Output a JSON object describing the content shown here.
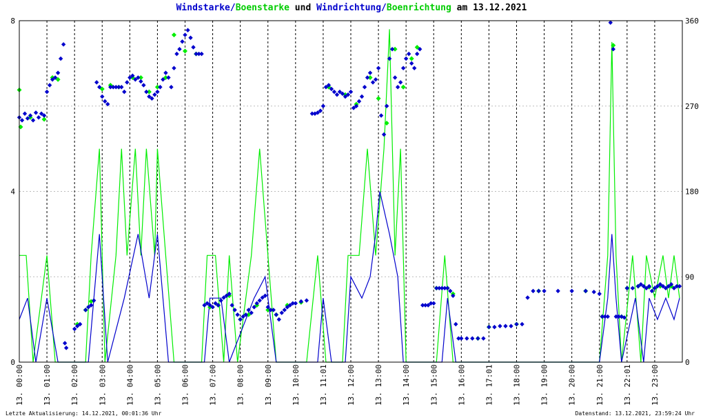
{
  "title": {
    "part1": "Windstarke/",
    "part2": "Boenstarke",
    "part3": " und ",
    "part4": "Windrichtung/",
    "part5": "Boenrichtung",
    "part6": " am 13.12.2021"
  },
  "footer": {
    "left": "Letzte Aktualisierung: 14.12.2021, 00:01:36 Uhr",
    "right": "Datenstand: 13.12.2021, 23:59:24 Uhr"
  },
  "colors": {
    "wind": "#0000cc",
    "gust": "#00ee00",
    "grid": "#000000",
    "grid_h": "#bbbbbb"
  },
  "chart_data": {
    "type": "line",
    "y_left": {
      "range": [
        0,
        8
      ],
      "ticks": [
        "0",
        "4",
        "8"
      ]
    },
    "y_right": {
      "range": [
        0,
        360
      ],
      "ticks": [
        "0",
        "90",
        "180",
        "270",
        "360"
      ]
    },
    "x_range": [
      0,
      24
    ],
    "x_tick_labels": [
      "13. 00:00",
      "13. 01:00",
      "13. 02:00",
      "13. 03:00",
      "13. 04:00",
      "13. 05:00",
      "13. 06:00",
      "13. 07:00",
      "13. 08:00",
      "13. 09:00",
      "13. 10:00",
      "13. 11:01",
      "13. 12:00",
      "13. 13:00",
      "13. 14:00",
      "13. 15:00",
      "13. 16:00",
      "13. 17:01",
      "13. 18:00",
      "13. 19:00",
      "13. 20:00",
      "13. 21:00",
      "13. 22:01",
      "13. 23:00"
    ],
    "grid": true,
    "gust_speed": [
      [
        0.0,
        2.5
      ],
      [
        0.25,
        2.5
      ],
      [
        0.5,
        0
      ],
      [
        1.0,
        2.5
      ],
      [
        1.3,
        0
      ],
      [
        1.8,
        0
      ],
      [
        2.4,
        0
      ],
      [
        2.6,
        2.5
      ],
      [
        2.9,
        5
      ],
      [
        3.1,
        0
      ],
      [
        3.5,
        2.5
      ],
      [
        3.7,
        5
      ],
      [
        3.9,
        2.5
      ],
      [
        4.2,
        5
      ],
      [
        4.4,
        2.5
      ],
      [
        4.6,
        5
      ],
      [
        4.9,
        2.5
      ],
      [
        5.0,
        5
      ],
      [
        5.3,
        2.5
      ],
      [
        5.6,
        0
      ],
      [
        6.0,
        0
      ],
      [
        6.6,
        0
      ],
      [
        6.8,
        2.5
      ],
      [
        7.1,
        2.5
      ],
      [
        7.4,
        0
      ],
      [
        7.6,
        2.5
      ],
      [
        7.9,
        0
      ],
      [
        8.4,
        2.5
      ],
      [
        8.7,
        5
      ],
      [
        9.0,
        2.5
      ],
      [
        9.3,
        0
      ],
      [
        9.8,
        0
      ],
      [
        10.4,
        0
      ],
      [
        10.8,
        2.5
      ],
      [
        11.1,
        0
      ],
      [
        11.7,
        0
      ],
      [
        11.9,
        2.5
      ],
      [
        12.3,
        2.5
      ],
      [
        12.6,
        5
      ],
      [
        12.9,
        2.5
      ],
      [
        13.2,
        5
      ],
      [
        13.4,
        7.8
      ],
      [
        13.6,
        2.5
      ],
      [
        13.8,
        5
      ],
      [
        14.0,
        0
      ],
      [
        14.5,
        0
      ],
      [
        15.1,
        0
      ],
      [
        15.4,
        2.5
      ],
      [
        15.7,
        0
      ],
      [
        17.0,
        0
      ],
      [
        18.5,
        0
      ],
      [
        20.5,
        0
      ],
      [
        21.0,
        0
      ],
      [
        21.3,
        2.5
      ],
      [
        21.45,
        7.5
      ],
      [
        21.6,
        2.5
      ],
      [
        21.8,
        0
      ],
      [
        22.2,
        2.5
      ],
      [
        22.5,
        0
      ],
      [
        22.7,
        2.5
      ],
      [
        23.0,
        1.5
      ],
      [
        23.3,
        2.5
      ],
      [
        23.5,
        1.5
      ],
      [
        23.7,
        2.5
      ],
      [
        23.9,
        1.5
      ]
    ],
    "wind_speed": [
      [
        0.0,
        1.0
      ],
      [
        0.3,
        1.5
      ],
      [
        0.6,
        0
      ],
      [
        1.0,
        1.5
      ],
      [
        1.4,
        0
      ],
      [
        2.5,
        0
      ],
      [
        2.9,
        3
      ],
      [
        3.2,
        0
      ],
      [
        3.8,
        1.5
      ],
      [
        4.3,
        3
      ],
      [
        4.7,
        1.5
      ],
      [
        5.0,
        3
      ],
      [
        5.4,
        0
      ],
      [
        6.7,
        0
      ],
      [
        6.9,
        1.5
      ],
      [
        7.3,
        1.5
      ],
      [
        7.6,
        0
      ],
      [
        8.5,
        1.5
      ],
      [
        8.9,
        2
      ],
      [
        9.3,
        0
      ],
      [
        10.8,
        0
      ],
      [
        11.0,
        1.5
      ],
      [
        11.3,
        0
      ],
      [
        11.8,
        0
      ],
      [
        12.0,
        2
      ],
      [
        12.4,
        1.5
      ],
      [
        12.7,
        2
      ],
      [
        12.9,
        3
      ],
      [
        13.05,
        4
      ],
      [
        13.4,
        3
      ],
      [
        13.7,
        2
      ],
      [
        13.9,
        0
      ],
      [
        15.3,
        0
      ],
      [
        15.5,
        1.5
      ],
      [
        15.8,
        0
      ],
      [
        21.0,
        0
      ],
      [
        21.3,
        1.5
      ],
      [
        21.45,
        3
      ],
      [
        21.6,
        1.5
      ],
      [
        21.8,
        0
      ],
      [
        22.3,
        1.5
      ],
      [
        22.6,
        0
      ],
      [
        22.8,
        1.5
      ],
      [
        23.1,
        1
      ],
      [
        23.4,
        1.5
      ],
      [
        23.7,
        1
      ],
      [
        23.9,
        1.5
      ]
    ],
    "wind_direction_deg": [
      [
        0.0,
        258
      ],
      [
        0.1,
        255
      ],
      [
        0.2,
        262
      ],
      [
        0.3,
        257
      ],
      [
        0.4,
        260
      ],
      [
        0.5,
        255
      ],
      [
        0.6,
        263
      ],
      [
        0.7,
        258
      ],
      [
        0.8,
        262
      ],
      [
        0.9,
        260
      ],
      [
        1.0,
        285
      ],
      [
        1.1,
        292
      ],
      [
        1.2,
        298
      ],
      [
        1.3,
        300
      ],
      [
        1.4,
        305
      ],
      [
        1.5,
        320
      ],
      [
        1.6,
        335
      ],
      [
        1.65,
        20
      ],
      [
        1.7,
        15
      ],
      [
        2.0,
        35
      ],
      [
        2.1,
        38
      ],
      [
        2.2,
        40
      ],
      [
        2.4,
        55
      ],
      [
        2.5,
        58
      ],
      [
        2.6,
        60
      ],
      [
        2.7,
        65
      ],
      [
        2.8,
        295
      ],
      [
        2.9,
        290
      ],
      [
        3.0,
        280
      ],
      [
        3.1,
        275
      ],
      [
        3.2,
        272
      ],
      [
        3.3,
        290
      ],
      [
        3.4,
        290
      ],
      [
        3.5,
        290
      ],
      [
        3.6,
        290
      ],
      [
        3.7,
        290
      ],
      [
        3.8,
        285
      ],
      [
        3.9,
        295
      ],
      [
        4.0,
        300
      ],
      [
        4.1,
        302
      ],
      [
        4.2,
        298
      ],
      [
        4.3,
        300
      ],
      [
        4.4,
        296
      ],
      [
        4.5,
        292
      ],
      [
        4.6,
        285
      ],
      [
        4.7,
        280
      ],
      [
        4.8,
        278
      ],
      [
        4.9,
        282
      ],
      [
        5.0,
        285
      ],
      [
        5.1,
        290
      ],
      [
        5.2,
        298
      ],
      [
        5.3,
        305
      ],
      [
        5.4,
        300
      ],
      [
        5.5,
        290
      ],
      [
        5.6,
        310
      ],
      [
        5.7,
        325
      ],
      [
        5.8,
        330
      ],
      [
        5.9,
        338
      ],
      [
        6.0,
        345
      ],
      [
        6.1,
        350
      ],
      [
        6.2,
        342
      ],
      [
        6.3,
        332
      ],
      [
        6.4,
        325
      ],
      [
        6.5,
        325
      ],
      [
        6.6,
        325
      ],
      [
        6.7,
        60
      ],
      [
        6.8,
        62
      ],
      [
        6.9,
        60
      ],
      [
        7.0,
        58
      ],
      [
        7.1,
        62
      ],
      [
        7.2,
        60
      ],
      [
        7.3,
        65
      ],
      [
        7.4,
        68
      ],
      [
        7.5,
        70
      ],
      [
        7.6,
        72
      ],
      [
        7.7,
        60
      ],
      [
        7.8,
        55
      ],
      [
        7.9,
        50
      ],
      [
        8.0,
        45
      ],
      [
        8.1,
        48
      ],
      [
        8.2,
        50
      ],
      [
        8.3,
        55
      ],
      [
        8.4,
        52
      ],
      [
        8.5,
        58
      ],
      [
        8.6,
        62
      ],
      [
        8.7,
        65
      ],
      [
        8.8,
        68
      ],
      [
        8.9,
        70
      ],
      [
        9.0,
        58
      ],
      [
        9.1,
        55
      ],
      [
        9.2,
        55
      ],
      [
        9.3,
        50
      ],
      [
        9.4,
        45
      ],
      [
        9.5,
        52
      ],
      [
        9.6,
        55
      ],
      [
        9.7,
        58
      ],
      [
        9.8,
        60
      ],
      [
        9.9,
        62
      ],
      [
        10.0,
        62
      ],
      [
        10.2,
        64
      ],
      [
        10.4,
        65
      ],
      [
        10.6,
        262
      ],
      [
        10.7,
        262
      ],
      [
        10.8,
        263
      ],
      [
        10.9,
        265
      ],
      [
        11.0,
        270
      ],
      [
        11.1,
        290
      ],
      [
        11.2,
        292
      ],
      [
        11.3,
        288
      ],
      [
        11.4,
        285
      ],
      [
        11.5,
        282
      ],
      [
        11.6,
        285
      ],
      [
        11.7,
        283
      ],
      [
        11.8,
        280
      ],
      [
        11.9,
        282
      ],
      [
        12.0,
        285
      ],
      [
        12.1,
        268
      ],
      [
        12.2,
        270
      ],
      [
        12.3,
        275
      ],
      [
        12.4,
        280
      ],
      [
        12.5,
        290
      ],
      [
        12.6,
        300
      ],
      [
        12.7,
        305
      ],
      [
        12.8,
        295
      ],
      [
        12.9,
        298
      ],
      [
        13.0,
        310
      ],
      [
        13.1,
        260
      ],
      [
        13.2,
        240
      ],
      [
        13.3,
        270
      ],
      [
        13.4,
        320
      ],
      [
        13.5,
        330
      ],
      [
        13.6,
        300
      ],
      [
        13.7,
        290
      ],
      [
        13.8,
        295
      ],
      [
        13.9,
        310
      ],
      [
        14.0,
        320
      ],
      [
        14.1,
        325
      ],
      [
        14.2,
        315
      ],
      [
        14.3,
        310
      ],
      [
        14.4,
        325
      ],
      [
        14.5,
        330
      ],
      [
        14.6,
        60
      ],
      [
        14.7,
        60
      ],
      [
        14.8,
        60
      ],
      [
        14.9,
        62
      ],
      [
        15.0,
        62
      ],
      [
        15.1,
        78
      ],
      [
        15.2,
        78
      ],
      [
        15.3,
        78
      ],
      [
        15.4,
        78
      ],
      [
        15.5,
        78
      ],
      [
        15.6,
        75
      ],
      [
        15.7,
        70
      ],
      [
        15.8,
        40
      ],
      [
        15.9,
        25
      ],
      [
        16.0,
        25
      ],
      [
        16.2,
        25
      ],
      [
        16.4,
        25
      ],
      [
        16.6,
        25
      ],
      [
        16.8,
        25
      ],
      [
        17.0,
        37
      ],
      [
        17.2,
        37
      ],
      [
        17.4,
        38
      ],
      [
        17.6,
        38
      ],
      [
        17.8,
        38
      ],
      [
        18.0,
        40
      ],
      [
        18.2,
        40
      ],
      [
        18.4,
        68
      ],
      [
        18.6,
        75
      ],
      [
        18.8,
        75
      ],
      [
        19.0,
        75
      ],
      [
        19.5,
        75
      ],
      [
        20.0,
        75
      ],
      [
        20.5,
        75
      ],
      [
        20.8,
        74
      ],
      [
        21.0,
        72
      ],
      [
        21.1,
        48
      ],
      [
        21.2,
        48
      ],
      [
        21.3,
        48
      ],
      [
        21.4,
        358
      ],
      [
        21.5,
        330
      ],
      [
        21.6,
        48
      ],
      [
        21.7,
        48
      ],
      [
        21.8,
        48
      ],
      [
        21.9,
        47
      ],
      [
        22.0,
        78
      ],
      [
        22.2,
        78
      ],
      [
        22.4,
        80
      ],
      [
        22.5,
        82
      ],
      [
        22.6,
        80
      ],
      [
        22.7,
        78
      ],
      [
        22.8,
        80
      ],
      [
        22.9,
        75
      ],
      [
        23.0,
        78
      ],
      [
        23.1,
        80
      ],
      [
        23.2,
        82
      ],
      [
        23.3,
        80
      ],
      [
        23.4,
        78
      ],
      [
        23.5,
        80
      ],
      [
        23.6,
        82
      ],
      [
        23.7,
        78
      ],
      [
        23.8,
        80
      ],
      [
        23.9,
        80
      ]
    ],
    "gust_direction_deg": [
      [
        0.0,
        287
      ],
      [
        0.05,
        248
      ],
      [
        0.4,
        258
      ],
      [
        0.9,
        256
      ],
      [
        1.2,
        300
      ],
      [
        1.4,
        298
      ],
      [
        2.1,
        40
      ],
      [
        2.4,
        55
      ],
      [
        2.6,
        64
      ],
      [
        3.0,
        288
      ],
      [
        3.3,
        292
      ],
      [
        3.6,
        290
      ],
      [
        4.1,
        300
      ],
      [
        4.4,
        300
      ],
      [
        4.7,
        285
      ],
      [
        5.0,
        290
      ],
      [
        5.3,
        300
      ],
      [
        5.6,
        345
      ],
      [
        6.0,
        328
      ],
      [
        6.4,
        325
      ],
      [
        6.9,
        58
      ],
      [
        7.2,
        60
      ],
      [
        7.6,
        70
      ],
      [
        8.0,
        45
      ],
      [
        8.3,
        50
      ],
      [
        8.6,
        60
      ],
      [
        9.0,
        55
      ],
      [
        9.3,
        50
      ],
      [
        9.7,
        60
      ],
      [
        10.2,
        63
      ],
      [
        11.2,
        290
      ],
      [
        11.8,
        282
      ],
      [
        12.2,
        272
      ],
      [
        12.7,
        300
      ],
      [
        13.0,
        278
      ],
      [
        13.3,
        252
      ],
      [
        13.6,
        330
      ],
      [
        13.9,
        290
      ],
      [
        14.2,
        320
      ],
      [
        14.4,
        332
      ],
      [
        15.1,
        78
      ],
      [
        15.5,
        78
      ],
      [
        15.7,
        72
      ],
      [
        16.6,
        25
      ],
      [
        17.0,
        37
      ],
      [
        18.0,
        40
      ],
      [
        18.8,
        75
      ],
      [
        20.5,
        75
      ],
      [
        21.1,
        48
      ],
      [
        21.5,
        334
      ],
      [
        21.8,
        48
      ],
      [
        22.0,
        78
      ],
      [
        22.4,
        80
      ],
      [
        22.8,
        79
      ],
      [
        23.2,
        80
      ],
      [
        23.6,
        80
      ]
    ]
  }
}
